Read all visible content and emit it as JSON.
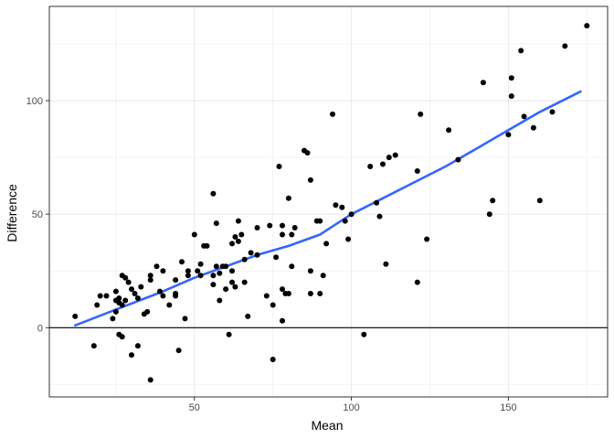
{
  "chart_data": {
    "type": "scatter",
    "xlabel": "Mean",
    "ylabel": "Difference",
    "xlim": [
      3.8,
      181.6
    ],
    "ylim": [
      -30.5,
      141.5
    ],
    "xticks": [
      50,
      100,
      150
    ],
    "yticks": [
      0,
      50,
      100
    ],
    "grid": true,
    "reference_line": {
      "y": 0,
      "color": "#000000"
    },
    "colors": {
      "points": "#000000",
      "smooth": "#3366ff",
      "grid": "#ebebeb",
      "panel_border": "#333333"
    },
    "series": [
      {
        "type": "points",
        "points": [
          [
            12,
            5
          ],
          [
            18,
            -8
          ],
          [
            19,
            10
          ],
          [
            20,
            14
          ],
          [
            22,
            14
          ],
          [
            24,
            4
          ],
          [
            25,
            7
          ],
          [
            25,
            12
          ],
          [
            25,
            16
          ],
          [
            26,
            11
          ],
          [
            26,
            13
          ],
          [
            26,
            -3
          ],
          [
            27,
            -4
          ],
          [
            27,
            10
          ],
          [
            27,
            23
          ],
          [
            28,
            12
          ],
          [
            28,
            22
          ],
          [
            29,
            20
          ],
          [
            30,
            -12
          ],
          [
            30,
            17
          ],
          [
            31,
            15
          ],
          [
            32,
            13
          ],
          [
            32,
            -8
          ],
          [
            33,
            18
          ],
          [
            34,
            6
          ],
          [
            35,
            7
          ],
          [
            36,
            21
          ],
          [
            36,
            23
          ],
          [
            36,
            -23
          ],
          [
            38,
            27
          ],
          [
            39,
            16
          ],
          [
            40,
            14
          ],
          [
            40,
            25
          ],
          [
            42,
            10
          ],
          [
            44,
            14
          ],
          [
            44,
            15
          ],
          [
            44,
            21
          ],
          [
            45,
            -10
          ],
          [
            46,
            29
          ],
          [
            47,
            4
          ],
          [
            48,
            23
          ],
          [
            48,
            25
          ],
          [
            50,
            41
          ],
          [
            51,
            25
          ],
          [
            52,
            28
          ],
          [
            52,
            23
          ],
          [
            53,
            36
          ],
          [
            54,
            36
          ],
          [
            56,
            59
          ],
          [
            56,
            19
          ],
          [
            56,
            23
          ],
          [
            57,
            46
          ],
          [
            57,
            27
          ],
          [
            58,
            12
          ],
          [
            58,
            24
          ],
          [
            59,
            27
          ],
          [
            60,
            17
          ],
          [
            60,
            27
          ],
          [
            61,
            -3
          ],
          [
            62,
            37
          ],
          [
            62,
            25
          ],
          [
            62,
            20
          ],
          [
            63,
            40
          ],
          [
            63,
            18
          ],
          [
            64,
            38
          ],
          [
            64,
            47
          ],
          [
            65,
            41
          ],
          [
            66,
            30
          ],
          [
            66,
            20
          ],
          [
            67,
            5
          ],
          [
            68,
            33
          ],
          [
            70,
            44
          ],
          [
            70,
            32
          ],
          [
            73,
            14
          ],
          [
            74,
            45
          ],
          [
            75,
            10
          ],
          [
            75,
            -14
          ],
          [
            76,
            31
          ],
          [
            77,
            71
          ],
          [
            78,
            45
          ],
          [
            78,
            41
          ],
          [
            78,
            17
          ],
          [
            78,
            3
          ],
          [
            79,
            15
          ],
          [
            80,
            57
          ],
          [
            80,
            15
          ],
          [
            81,
            41
          ],
          [
            81,
            27
          ],
          [
            82,
            44
          ],
          [
            85,
            78
          ],
          [
            86,
            77
          ],
          [
            87,
            65
          ],
          [
            87,
            25
          ],
          [
            87,
            15
          ],
          [
            89,
            47
          ],
          [
            90,
            47
          ],
          [
            90,
            15
          ],
          [
            91,
            23
          ],
          [
            92,
            37
          ],
          [
            94,
            94
          ],
          [
            95,
            54
          ],
          [
            97,
            53
          ],
          [
            98,
            47
          ],
          [
            99,
            39
          ],
          [
            100,
            50
          ],
          [
            104,
            -3
          ],
          [
            106,
            71
          ],
          [
            108,
            55
          ],
          [
            109,
            49
          ],
          [
            110,
            72
          ],
          [
            111,
            28
          ],
          [
            112,
            75
          ],
          [
            114,
            76
          ],
          [
            121,
            20
          ],
          [
            121,
            69
          ],
          [
            122,
            94
          ],
          [
            124,
            39
          ],
          [
            131,
            87
          ],
          [
            134,
            74
          ],
          [
            142,
            108
          ],
          [
            144,
            50
          ],
          [
            145,
            56
          ],
          [
            150,
            85
          ],
          [
            151,
            110
          ],
          [
            151,
            102
          ],
          [
            154,
            122
          ],
          [
            155,
            93
          ],
          [
            158,
            88
          ],
          [
            160,
            56
          ],
          [
            164,
            95
          ],
          [
            168,
            124
          ],
          [
            175,
            133
          ]
        ]
      },
      {
        "type": "smooth",
        "points": [
          [
            12,
            1
          ],
          [
            25,
            8
          ],
          [
            40,
            16
          ],
          [
            50,
            22
          ],
          [
            60,
            27
          ],
          [
            70,
            32
          ],
          [
            80,
            36
          ],
          [
            90,
            41
          ],
          [
            100,
            50
          ],
          [
            110,
            57
          ],
          [
            120,
            64
          ],
          [
            130,
            71
          ],
          [
            140,
            79
          ],
          [
            150,
            87
          ],
          [
            160,
            95
          ],
          [
            173,
            104
          ]
        ]
      }
    ]
  }
}
